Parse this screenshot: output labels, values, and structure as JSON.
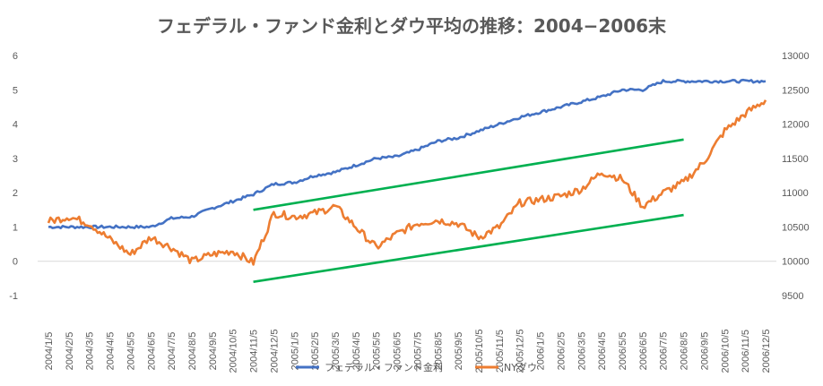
{
  "chart_data": {
    "type": "line",
    "title": "フェデラル・ファンド金利とダウ平均の推移：2004−2006末",
    "x": [
      "2004/1/5",
      "2004/2/5",
      "2004/3/5",
      "2004/4/5",
      "2004/5/5",
      "2004/6/5",
      "2004/7/5",
      "2004/8/5",
      "2004/9/5",
      "2004/10/5",
      "2004/11/5",
      "2004/12/5",
      "2005/1/5",
      "2005/2/5",
      "2005/3/5",
      "2005/4/5",
      "2005/5/5",
      "2005/6/5",
      "2005/7/5",
      "2005/8/5",
      "2005/9/5",
      "2005/10/5",
      "2005/11/5",
      "2005/12/5",
      "2006/1/5",
      "2006/2/5",
      "2006/3/5",
      "2006/4/5",
      "2006/5/5",
      "2006/6/5",
      "2006/7/5",
      "2006/8/5",
      "2006/9/5",
      "2006/10/5",
      "2006/11/5",
      "2006/12/5"
    ],
    "y_left": {
      "min": -1,
      "max": 6,
      "ticks": [
        "-1",
        "0",
        "1",
        "2",
        "3",
        "4",
        "5",
        "6"
      ]
    },
    "y_right": {
      "min": 9500,
      "max": 13000,
      "ticks": [
        "9500",
        "10000",
        "10500",
        "11000",
        "11500",
        "12000",
        "12500",
        "13000"
      ]
    },
    "series": [
      {
        "name": "フェデラル・ファンド金利",
        "axis": "left",
        "color": "#4472C4",
        "values": [
          1.0,
          1.0,
          1.0,
          1.0,
          1.0,
          1.0,
          1.25,
          1.3,
          1.55,
          1.75,
          1.95,
          2.25,
          2.3,
          2.5,
          2.6,
          2.8,
          3.0,
          3.05,
          3.25,
          3.5,
          3.6,
          3.8,
          4.0,
          4.2,
          4.35,
          4.5,
          4.65,
          4.8,
          5.0,
          5.0,
          5.25,
          5.25,
          5.25,
          5.25,
          5.25,
          5.25
        ]
      },
      {
        "name": "NYダウ",
        "axis": "right",
        "color": "#ED7D31",
        "values": [
          10580,
          10650,
          10550,
          10320,
          10100,
          10350,
          10200,
          10000,
          10100,
          10150,
          9980,
          10700,
          10650,
          10700,
          10800,
          10500,
          10200,
          10400,
          10550,
          10600,
          10550,
          10350,
          10500,
          10850,
          10900,
          10950,
          11050,
          11300,
          11200,
          10800,
          11000,
          11150,
          11450,
          11900,
          12150,
          12350
        ]
      }
    ],
    "trendlines": [
      {
        "name": "upper-channel",
        "color": "#00B050",
        "axis": "left",
        "from": {
          "x": "2004/11/5",
          "y": 1.5
        },
        "to": {
          "x": "2006/8/5",
          "y": 3.55
        }
      },
      {
        "name": "lower-channel",
        "color": "#00B050",
        "axis": "left",
        "from": {
          "x": "2004/11/5",
          "y": -0.6
        },
        "to": {
          "x": "2006/8/5",
          "y": 1.35
        }
      }
    ],
    "legend_position": "bottom",
    "grid": false
  }
}
